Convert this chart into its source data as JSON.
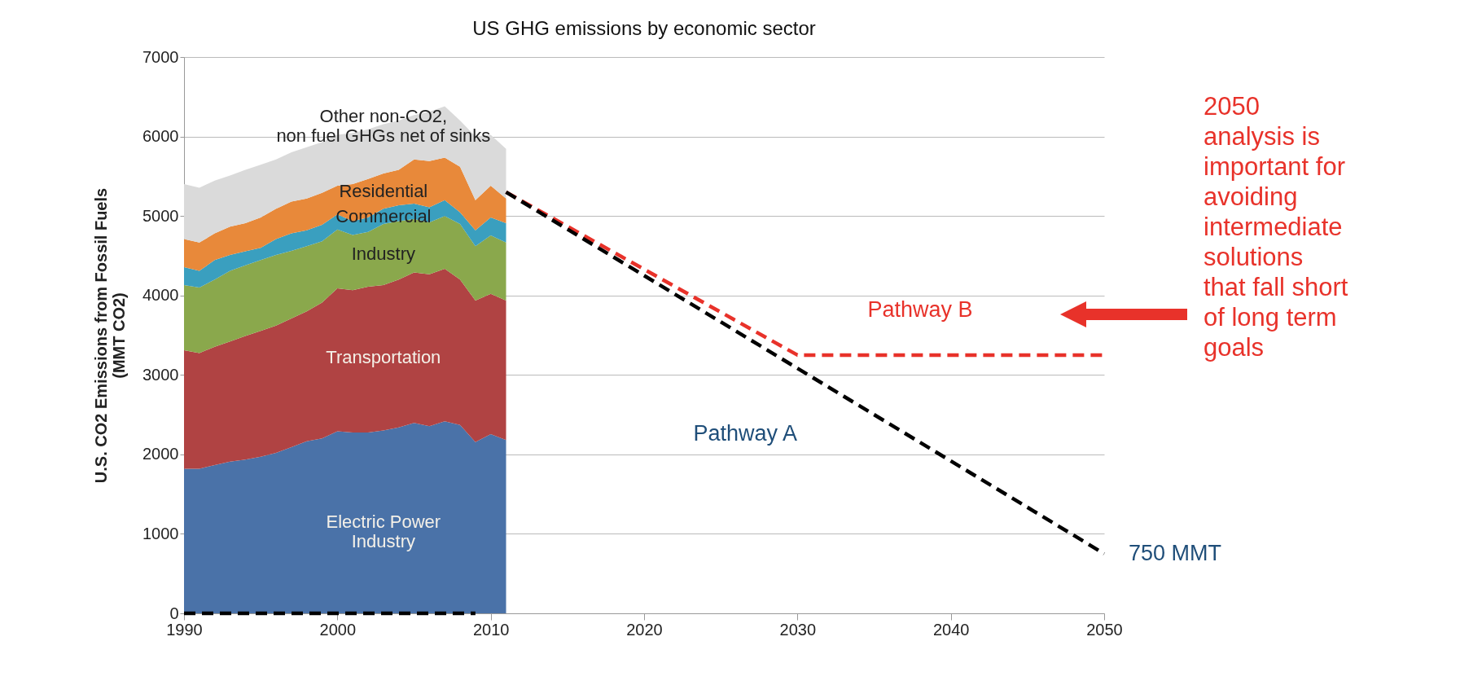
{
  "chart_data": {
    "type": "area",
    "title": "US GHG emissions by economic sector",
    "ylabel": "U.S. CO2 Emissions from Fossil Fuels\n(MMT CO2)",
    "stacked": true,
    "x": [
      1990,
      1991,
      1992,
      1993,
      1994,
      1995,
      1996,
      1997,
      1998,
      1999,
      2000,
      2001,
      2002,
      2003,
      2004,
      2005,
      2006,
      2007,
      2008,
      2009,
      2010,
      2011
    ],
    "xlim": [
      1990,
      2050
    ],
    "xticks": [
      1990,
      2000,
      2010,
      2020,
      2030,
      2040,
      2050
    ],
    "ylim": [
      0,
      7000
    ],
    "yticks": [
      0,
      1000,
      2000,
      3000,
      4000,
      5000,
      6000,
      7000
    ],
    "grid": "y",
    "series": [
      {
        "name": "Electric Power\nIndustry",
        "color": "#4a72a8",
        "values": [
          1820,
          1820,
          1865,
          1910,
          1935,
          1970,
          2020,
          2090,
          2165,
          2200,
          2290,
          2275,
          2275,
          2300,
          2340,
          2395,
          2355,
          2415,
          2370,
          2155,
          2255,
          2180
        ]
      },
      {
        "name": "Transportation",
        "color": "#b04343",
        "values": [
          1490,
          1455,
          1490,
          1510,
          1555,
          1585,
          1600,
          1620,
          1635,
          1710,
          1800,
          1790,
          1835,
          1830,
          1860,
          1895,
          1910,
          1920,
          1830,
          1780,
          1765,
          1755
        ]
      },
      {
        "name": "Industry",
        "color": "#8aa84c",
        "values": [
          820,
          825,
          845,
          890,
          890,
          890,
          890,
          850,
          820,
          770,
          740,
          695,
          690,
          770,
          735,
          670,
          655,
          665,
          700,
          685,
          735,
          730
        ]
      },
      {
        "name": "Commercial",
        "color": "#3a9fbf",
        "values": [
          225,
          210,
          245,
          200,
          175,
          155,
          200,
          220,
          200,
          210,
          190,
          175,
          180,
          190,
          200,
          195,
          190,
          200,
          145,
          200,
          225,
          245
        ]
      },
      {
        "name": "Residential",
        "color": "#e8893a",
        "values": [
          355,
          355,
          335,
          355,
          355,
          380,
          380,
          400,
          400,
          400,
          360,
          465,
          485,
          445,
          445,
          555,
          580,
          535,
          575,
          380,
          400,
          310
        ]
      },
      {
        "name": "Other non-CO2,\nnon fuel GHGs net of sinks",
        "color": "#dadada",
        "values": [
          690,
          690,
          665,
          645,
          670,
          665,
          620,
          620,
          645,
          640,
          640,
          645,
          625,
          620,
          620,
          560,
          620,
          645,
          580,
          800,
          640,
          625
        ]
      },
      {
        "name": "Pathway A",
        "type": "line",
        "x": [
          2011,
          2050
        ],
        "values": [
          5300,
          750
        ],
        "color": "#000000",
        "line_style": "dashed"
      },
      {
        "name": "Pathway B",
        "type": "line",
        "x": [
          2011,
          2030,
          2050
        ],
        "values": [
          5300,
          3250,
          3250
        ],
        "color": "#e8322a",
        "line_style": "dashed"
      },
      {
        "type": "line",
        "x": [
          1990,
          2009
        ],
        "values": [
          0,
          0
        ],
        "color": "#000000",
        "line_style": "dashed"
      }
    ],
    "annotations": [
      {
        "text": "750 MMT",
        "x": 2050,
        "y": 750
      },
      "2050\nanalysis is\nimportant for\navoiding\nintermediate\nsolutions\nthat fall short\nof long term\ngoals"
    ]
  }
}
